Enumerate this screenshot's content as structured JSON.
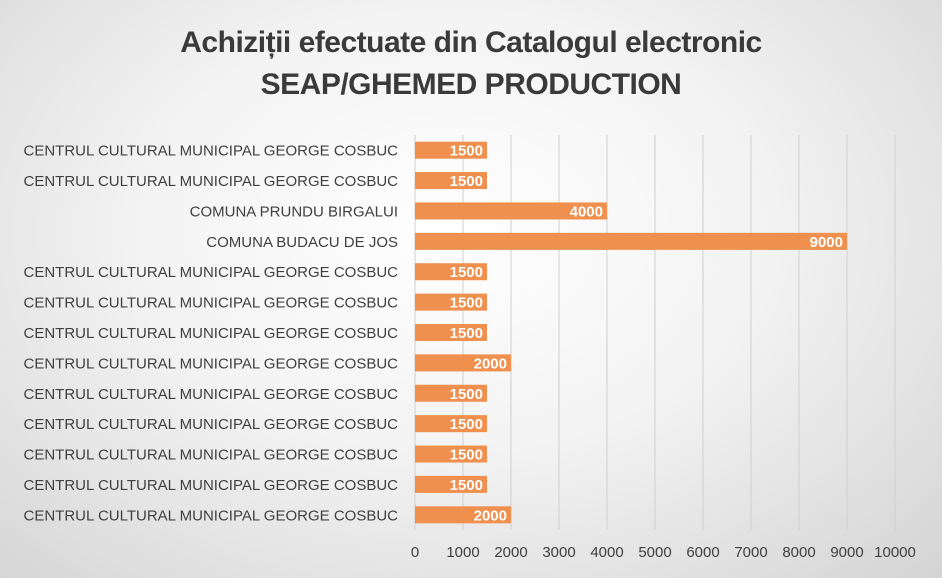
{
  "chart_data": {
    "type": "bar",
    "orientation": "horizontal",
    "title_lines": [
      "Achiziții efectuate din Catalogul electronic",
      "SEAP/GHEMED PRODUCTION"
    ],
    "categories": [
      "CENTRUL CULTURAL MUNICIPAL GEORGE COSBUC",
      "CENTRUL CULTURAL MUNICIPAL GEORGE COSBUC",
      "COMUNA PRUNDU BIRGALUI",
      "COMUNA BUDACU DE JOS",
      "CENTRUL CULTURAL MUNICIPAL GEORGE COSBUC",
      "CENTRUL CULTURAL MUNICIPAL GEORGE COSBUC",
      "CENTRUL CULTURAL MUNICIPAL GEORGE COSBUC",
      "CENTRUL CULTURAL MUNICIPAL GEORGE COSBUC",
      "CENTRUL CULTURAL MUNICIPAL GEORGE COSBUC",
      "CENTRUL CULTURAL MUNICIPAL GEORGE COSBUC",
      "CENTRUL CULTURAL MUNICIPAL GEORGE COSBUC",
      "CENTRUL CULTURAL MUNICIPAL GEORGE COSBUC",
      "CENTRUL CULTURAL MUNICIPAL GEORGE COSBUC"
    ],
    "values": [
      1500,
      1500,
      4000,
      9000,
      1500,
      1500,
      1500,
      2000,
      1500,
      1500,
      1500,
      1500,
      2000
    ],
    "xlim": [
      0,
      10000
    ],
    "xticks": [
      0,
      1000,
      2000,
      3000,
      4000,
      5000,
      6000,
      7000,
      8000,
      9000,
      10000
    ],
    "grid": true,
    "data_labels": true,
    "legend": "none",
    "bar_color": "#F0904F"
  }
}
